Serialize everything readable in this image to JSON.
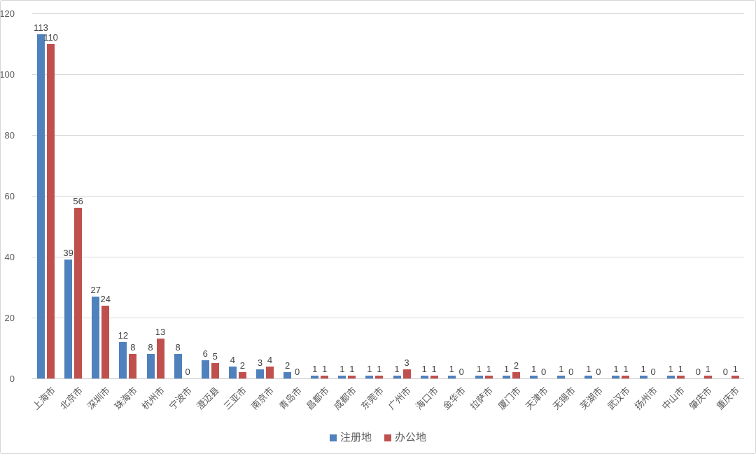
{
  "chart_data": {
    "type": "bar",
    "title": "",
    "categories": [
      "上海市",
      "北京市",
      "深圳市",
      "珠海市",
      "杭州市",
      "宁波市",
      "澄迈县",
      "三亚市",
      "南京市",
      "青岛市",
      "昌都市",
      "成都市",
      "东莞市",
      "广州市",
      "海口市",
      "金华市",
      "拉萨市",
      "厦门市",
      "天津市",
      "无锡市",
      "芜湖市",
      "武汉市",
      "扬州市",
      "中山市",
      "肇庆市",
      "重庆市"
    ],
    "series": [
      {
        "name": "注册地",
        "color": "#4F81BD",
        "values": [
          113,
          39,
          27,
          12,
          8,
          8,
          6,
          4,
          3,
          2,
          1,
          1,
          1,
          1,
          1,
          1,
          1,
          1,
          1,
          1,
          1,
          1,
          1,
          1,
          0,
          0
        ]
      },
      {
        "name": "办公地",
        "color": "#C0504D",
        "values": [
          110,
          56,
          24,
          8,
          13,
          0,
          5,
          2,
          4,
          0,
          1,
          1,
          1,
          3,
          1,
          0,
          1,
          2,
          0,
          0,
          0,
          1,
          0,
          1,
          1,
          1
        ]
      }
    ],
    "xlabel": "",
    "ylabel": "",
    "ylim": [
      0,
      120
    ],
    "yticks": [
      0,
      20,
      40,
      60,
      80,
      100,
      120
    ],
    "grid": true,
    "data_labels": true,
    "legend_position": "bottom",
    "colors": {
      "gridline": "#d9d9d9",
      "baseline": "#c6c6c6",
      "axis_text": "#595959",
      "data_label_text": "#404040",
      "background": "#ffffff"
    }
  }
}
